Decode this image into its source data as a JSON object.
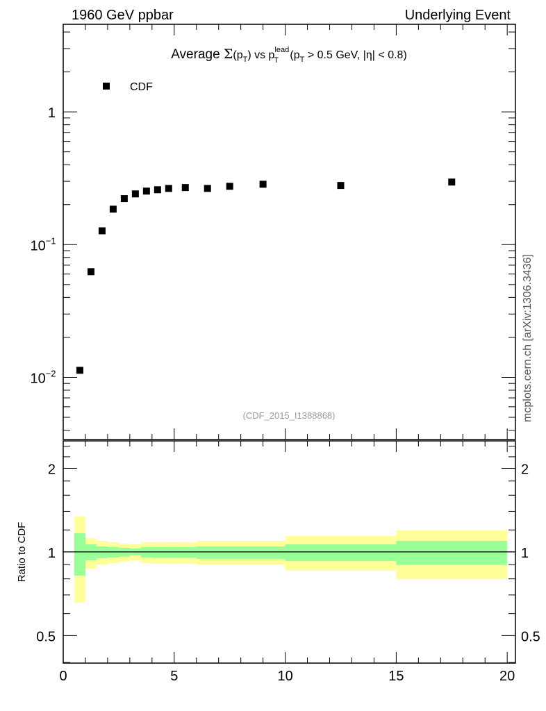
{
  "header": {
    "left": "1960 GeV ppbar",
    "right": "Underlying Event"
  },
  "side_label": "mcplots.cern.ch [arXiv:1306.3436]",
  "analysis_label": "(CDF_2015_I1388868)",
  "chart_data": [
    {
      "type": "scatter",
      "title": {
        "pre": "Average ",
        "sigma": "Σ",
        "a": "(p",
        "sub1": "T",
        "b": ") vs p",
        "sup": "lead",
        "sub2": "T",
        "c": " (p",
        "sub3": "T",
        "d": " > 0.5 GeV, |η| < 0.8)"
      },
      "xlim": [
        0,
        20.37
      ],
      "ylim": [
        0.0034,
        4.57
      ],
      "yscale": "log",
      "ytick_labels": [
        {
          "value": 1,
          "base": "1",
          "exp": ""
        },
        {
          "value": 0.1,
          "base": "10",
          "exp": "−1"
        },
        {
          "value": 0.01,
          "base": "10",
          "exp": "−2"
        }
      ],
      "legend": {
        "placement": "top-left",
        "entries": [
          "CDF"
        ]
      },
      "series": [
        {
          "name": "CDF",
          "color": "#000000",
          "x": [
            0.75,
            1.25,
            1.75,
            2.25,
            2.75,
            3.25,
            3.75,
            4.25,
            4.75,
            5.5,
            6.5,
            7.5,
            9,
            12.5,
            17.5
          ],
          "y": [
            0.0113,
            0.0625,
            0.127,
            0.185,
            0.222,
            0.241,
            0.253,
            0.259,
            0.265,
            0.269,
            0.265,
            0.275,
            0.285,
            0.279,
            0.296
          ]
        }
      ]
    },
    {
      "type": "area",
      "ylabel": "Ratio to CDF",
      "xlim": [
        0,
        20.37
      ],
      "ylim": [
        0.398,
        2.51
      ],
      "yscale": "log",
      "xtick_labels": [
        "0",
        "5",
        "10",
        "15",
        "20"
      ],
      "ytick_labels": [
        "0.5",
        "1",
        "2"
      ],
      "bin_edges": [
        0.5,
        1,
        1.5,
        2,
        2.5,
        3,
        3.5,
        4,
        5,
        6,
        10,
        15,
        20
      ],
      "yellow_band": {
        "color": "#ffff99",
        "upper": [
          1.341,
          1.122,
          1.096,
          1.084,
          1.071,
          1.065,
          1.084,
          1.084,
          1.084,
          1.096,
          1.14,
          1.195
        ],
        "lower": [
          0.657,
          0.871,
          0.901,
          0.912,
          0.923,
          0.933,
          0.912,
          0.907,
          0.907,
          0.901,
          0.856,
          0.799
        ]
      },
      "green_band": {
        "color": "#99ff99",
        "upper": [
          1.168,
          1.065,
          1.047,
          1.041,
          1.035,
          1.029,
          1.041,
          1.041,
          1.041,
          1.047,
          1.065,
          1.096
        ],
        "lower": [
          0.822,
          0.933,
          0.95,
          0.955,
          0.961,
          0.972,
          0.955,
          0.952,
          0.952,
          0.944,
          0.928,
          0.897
        ]
      }
    }
  ]
}
